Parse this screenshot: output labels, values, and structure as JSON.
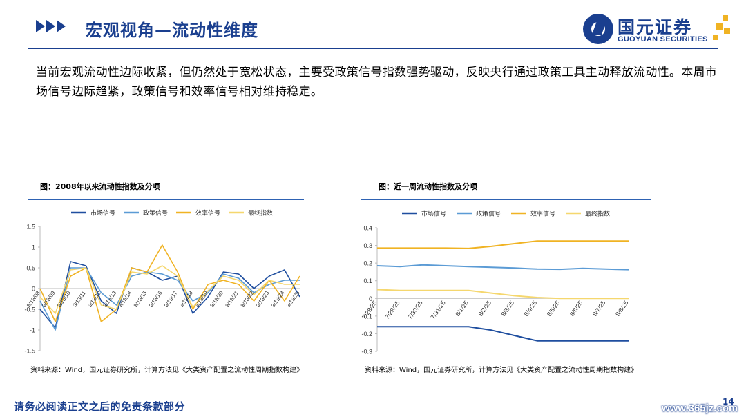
{
  "header": {
    "title": "宏观视角—流动性维度",
    "logo_cn": "国元证券",
    "logo_en": "GUOYUAN SECURITIES"
  },
  "body": {
    "paragraph": "当前宏观流动性边际收紧，但仍然处于宽松状态，主要受政策信号指数强势驱动，反映央行通过政策工具主动释放流动性。本周市场信号边际趋紧，政策信号和效率信号相对维持稳定。"
  },
  "left_chart": {
    "caption": "图：2008年以来流动性指数及分项",
    "source": "资料来源：Wind，国元证券研究所，计算方法见《大类资产配置之流动性周期指数构建》"
  },
  "right_chart": {
    "caption": "图：近一周流动性指数及分项",
    "source": "资料来源：Wind，国元证券研究所，计算方法见《大类资产配置之流动性周期指数构建》"
  },
  "footer": {
    "disclaimer": "请务必阅读正文之后的免责条款部分",
    "page": "14",
    "watermark": "www.365jz.com"
  },
  "colors": {
    "market": "#1f4e9f",
    "policy": "#5b9bd5",
    "efficiency": "#f0b323",
    "final": "#f5d76e",
    "brand": "#1a3f8f"
  },
  "chart_data": [
    {
      "type": "line",
      "title": "图：2008年以来流动性指数及分项",
      "x": [
        "3/13/08",
        "3/13/09",
        "3/13/10",
        "3/13/11",
        "3/13/12",
        "3/13/13",
        "3/13/14",
        "3/13/15",
        "3/13/16",
        "3/13/17",
        "3/13/18",
        "3/13/19",
        "3/13/20",
        "3/13/21",
        "3/13/22",
        "3/13/23",
        "3/13/24",
        "3/13/25"
      ],
      "ylim": [
        -1.5,
        1.5
      ],
      "yticks": [
        "1.5",
        "1",
        "0.5",
        "0",
        "-0.5",
        "-1",
        "-1.5"
      ],
      "legend": "top",
      "series": [
        {
          "name": "市场信号",
          "values": [
            -0.5,
            -0.95,
            0.65,
            0.55,
            -0.3,
            -0.6,
            0.5,
            0.4,
            0.2,
            0.3,
            -0.6,
            -0.2,
            0.4,
            0.35,
            0.0,
            0.3,
            0.45,
            -0.2
          ]
        },
        {
          "name": "政策信号",
          "values": [
            -0.3,
            -1.0,
            0.5,
            0.5,
            -0.1,
            -0.4,
            0.3,
            0.4,
            0.35,
            0.2,
            -0.3,
            -0.1,
            0.35,
            0.25,
            -0.1,
            0.1,
            0.2,
            0.2
          ]
        },
        {
          "name": "效率信号",
          "values": [
            0.0,
            -0.8,
            0.3,
            0.5,
            -0.8,
            -0.5,
            0.5,
            0.4,
            1.05,
            0.4,
            -0.5,
            0.1,
            0.2,
            0.1,
            -0.3,
            0.2,
            -0.3,
            0.3
          ]
        },
        {
          "name": "最终指数",
          "values": [
            -0.2,
            -0.6,
            0.45,
            0.5,
            -0.4,
            -0.5,
            0.4,
            0.35,
            0.55,
            0.3,
            -0.45,
            -0.05,
            0.3,
            0.2,
            -0.15,
            0.2,
            0.1,
            0.1
          ]
        }
      ]
    },
    {
      "type": "line",
      "title": "图：近一周流动性指数及分项",
      "x": [
        "7/28/25",
        "7/29/25",
        "7/30/25",
        "7/31/25",
        "8/1/25",
        "8/2/25",
        "8/3/25",
        "8/4/25",
        "8/5/25",
        "8/6/25",
        "8/7/25",
        "8/8/25"
      ],
      "ylim": [
        -0.3,
        0.4
      ],
      "yticks": [
        "0.4",
        "0.3",
        "0.2",
        "0.1",
        "0",
        "-0.1",
        "-0.2",
        "-0.3"
      ],
      "legend": "top",
      "series": [
        {
          "name": "市场信号",
          "values": [
            -0.16,
            -0.16,
            -0.16,
            -0.16,
            -0.16,
            -0.18,
            -0.21,
            -0.24,
            -0.24,
            -0.24,
            -0.24,
            -0.24
          ]
        },
        {
          "name": "政策信号",
          "values": [
            0.185,
            0.18,
            0.19,
            0.185,
            0.18,
            0.176,
            0.172,
            0.166,
            0.165,
            0.17,
            0.166,
            0.163
          ]
        },
        {
          "name": "效率信号",
          "values": [
            0.285,
            0.285,
            0.285,
            0.285,
            0.283,
            0.295,
            0.31,
            0.325,
            0.325,
            0.325,
            0.325,
            0.325
          ]
        },
        {
          "name": "最终指数",
          "values": [
            0.05,
            0.045,
            0.045,
            0.045,
            0.045,
            0.03,
            0.015,
            0.005,
            0.0,
            0.0,
            0.0,
            0.0
          ]
        }
      ]
    }
  ]
}
